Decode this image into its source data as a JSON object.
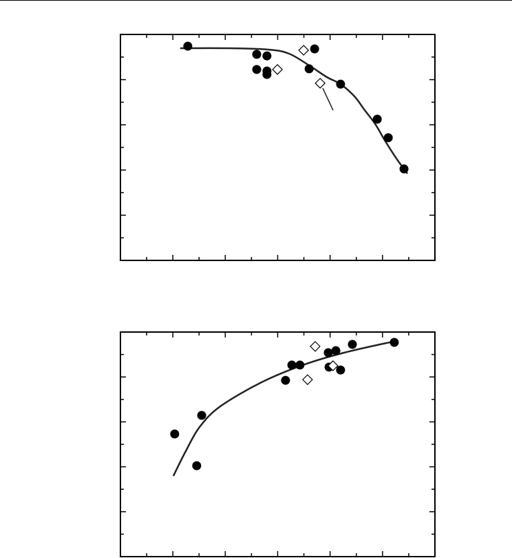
{
  "chart_data": [
    {
      "type": "scatter",
      "xlim": [
        0,
        12
      ],
      "ylim": [
        0,
        10
      ],
      "xticks": [
        0,
        1,
        2,
        3,
        4,
        5,
        6,
        7,
        8,
        9,
        10,
        11,
        12
      ],
      "yticks": [
        0,
        1,
        2,
        3,
        4,
        5,
        6,
        7,
        8,
        9,
        10
      ],
      "series": [
        {
          "color": "#000000",
          "marker": "circle",
          "x": [
            2.57,
            5.2,
            5.59,
            5.2,
            5.59,
            5.59,
            7.41,
            7.2,
            8.4,
            9.8,
            10.22,
            10.82
          ],
          "values": [
            9.48,
            9.12,
            9.05,
            8.45,
            8.38,
            8.23,
            9.36,
            8.48,
            7.8,
            6.25,
            5.43,
            4.05
          ]
        },
        {
          "color": "#000000",
          "marker": "open-diamond",
          "x": [
            5.99,
            6.99,
            7.62
          ],
          "values": [
            8.45,
            9.3,
            7.84
          ]
        },
        {
          "color": "#222222",
          "marker": "line",
          "x": [
            2.28,
            4.07,
            5.65,
            6.43,
            7.2,
            7.88,
            8.4,
            8.93,
            9.32,
            9.72,
            10.11,
            10.53,
            10.95
          ],
          "values": [
            9.39,
            9.39,
            9.33,
            9.15,
            8.63,
            8.11,
            7.8,
            7.26,
            6.65,
            6.04,
            5.27,
            4.51,
            3.84
          ]
        }
      ]
    },
    {
      "type": "scatter",
      "xlim": [
        0,
        12
      ],
      "ylim": [
        0,
        10
      ],
      "xticks": [
        0,
        1,
        2,
        3,
        4,
        5,
        6,
        7,
        8,
        9,
        10,
        11,
        12
      ],
      "yticks": [
        0,
        1,
        2,
        3,
        4,
        5,
        6,
        7,
        8,
        9,
        10
      ],
      "series": [
        {
          "color": "#000000",
          "marker": "circle",
          "x": [
            2.07,
            3.1,
            2.91,
            6.3,
            6.54,
            6.85,
            7.93,
            8.22,
            7.96,
            8.4,
            8.85,
            10.45
          ],
          "values": [
            5.46,
            6.29,
            4.05,
            7.85,
            8.53,
            8.53,
            9.08,
            9.17,
            8.44,
            8.31,
            9.45,
            9.54
          ]
        },
        {
          "color": "#000000",
          "marker": "open-diamond",
          "x": [
            7.43,
            7.14,
            8.11
          ],
          "values": [
            9.36,
            7.88,
            8.5
          ]
        },
        {
          "color": "#222222",
          "marker": "line",
          "x": [
            2.02,
            2.49,
            3.02,
            3.81,
            5.38,
            6.96,
            8.53,
            10.5
          ],
          "values": [
            3.59,
            4.69,
            5.77,
            6.69,
            7.76,
            8.53,
            9.08,
            9.6
          ]
        }
      ]
    }
  ]
}
